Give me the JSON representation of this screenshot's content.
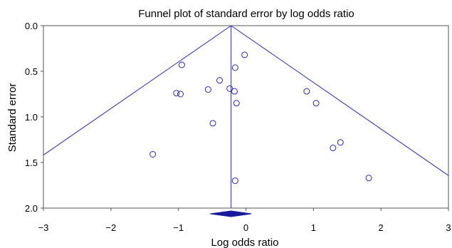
{
  "chart_data": {
    "type": "scatter",
    "title": "Funnel plot of standard error by log odds ratio",
    "xlabel": "Log odds  ratio",
    "ylabel": "Standard error",
    "xlim": [
      -3,
      3
    ],
    "ylim": [
      0.0,
      2.0
    ],
    "y_inverted": true,
    "xticks": [
      "−3",
      "−2",
      "−1",
      "0",
      "1",
      "2",
      "3"
    ],
    "yticks": [
      "0.0",
      "0.5",
      "1.0",
      "1.5",
      "2.0"
    ],
    "xtick_values": [
      -3,
      -2,
      -1,
      0,
      1,
      2,
      3
    ],
    "ytick_values": [
      0.0,
      0.5,
      1.0,
      1.5,
      2.0
    ],
    "grid": false,
    "marker": "open-circle",
    "color": "#2a2aa8",
    "pooled_estimate": -0.22,
    "pooled_ci": [
      -0.53,
      0.08
    ],
    "funnel_limit": "pooled ± 1.96 × SE",
    "points": [
      {
        "x": -0.02,
        "y": 0.32
      },
      {
        "x": -0.95,
        "y": 0.43
      },
      {
        "x": -0.16,
        "y": 0.46
      },
      {
        "x": -0.39,
        "y": 0.6
      },
      {
        "x": -0.56,
        "y": 0.7
      },
      {
        "x": -0.24,
        "y": 0.69
      },
      {
        "x": -1.03,
        "y": 0.74
      },
      {
        "x": -0.97,
        "y": 0.75
      },
      {
        "x": -0.17,
        "y": 0.72
      },
      {
        "x": -0.14,
        "y": 0.85
      },
      {
        "x": 0.9,
        "y": 0.72
      },
      {
        "x": 1.04,
        "y": 0.85
      },
      {
        "x": -0.49,
        "y": 1.07
      },
      {
        "x": 1.4,
        "y": 1.28
      },
      {
        "x": 1.29,
        "y": 1.34
      },
      {
        "x": -1.38,
        "y": 1.41
      },
      {
        "x": 1.82,
        "y": 1.67
      },
      {
        "x": -0.16,
        "y": 1.7
      }
    ]
  }
}
